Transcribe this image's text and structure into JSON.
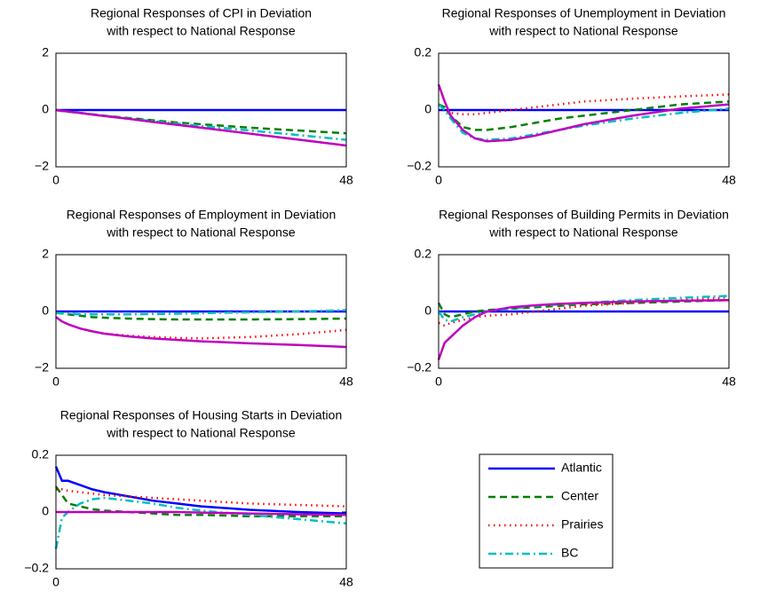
{
  "chart_data": [
    {
      "type": "line",
      "title": "Regional Responses of CPI in Deviation",
      "subtitle": "with respect to National Response",
      "x": [
        0,
        1,
        2,
        4,
        6,
        8,
        12,
        16,
        20,
        24,
        32,
        40,
        48
      ],
      "xlim": [
        0,
        48
      ],
      "xticks": [
        0,
        48
      ],
      "ylim": [
        -2,
        2
      ],
      "yticks": [
        {
          "value": -2,
          "label": "−2"
        },
        0,
        2
      ],
      "series": [
        {
          "name": "Atlantic",
          "color": "#0000ff",
          "dash": "solid",
          "values": [
            0,
            0,
            0,
            0,
            0,
            0,
            0,
            0,
            0,
            0,
            0,
            0,
            0
          ]
        },
        {
          "name": "Center",
          "color": "#008000",
          "dash": "dashed",
          "values": [
            0,
            -0.03,
            -0.06,
            -0.1,
            -0.15,
            -0.2,
            -0.28,
            -0.36,
            -0.44,
            -0.5,
            -0.62,
            -0.72,
            -0.82
          ]
        },
        {
          "name": "Prairies",
          "color": "#ff0000",
          "dash": "dotted",
          "values": [
            0,
            -0.03,
            -0.05,
            -0.1,
            -0.16,
            -0.21,
            -0.31,
            -0.42,
            -0.52,
            -0.62,
            -0.83,
            -1.04,
            -1.25
          ]
        },
        {
          "name": "BC",
          "color": "#00bfbf",
          "dash": "dashdot",
          "values": [
            0,
            -0.03,
            -0.05,
            -0.1,
            -0.15,
            -0.2,
            -0.3,
            -0.39,
            -0.48,
            -0.56,
            -0.72,
            -0.88,
            -1.05
          ]
        },
        {
          "color": "#bf00bf",
          "dash": "solid",
          "values": [
            0,
            -0.03,
            -0.05,
            -0.1,
            -0.16,
            -0.21,
            -0.31,
            -0.42,
            -0.52,
            -0.62,
            -0.83,
            -1.04,
            -1.25
          ]
        }
      ]
    },
    {
      "type": "line",
      "title": "Regional Responses of Unemployment in Deviation",
      "subtitle": "with respect to National Response",
      "x": [
        0,
        1,
        2,
        4,
        6,
        8,
        12,
        16,
        20,
        24,
        32,
        40,
        48
      ],
      "xlim": [
        0,
        48
      ],
      "xticks": [
        0,
        48
      ],
      "ylim": [
        -0.2,
        0.2
      ],
      "yticks": [
        {
          "value": -0.2,
          "label": "−0.2"
        },
        0,
        0.2
      ],
      "series": [
        {
          "name": "Atlantic",
          "color": "#0000ff",
          "dash": "solid",
          "values": [
            0,
            0,
            0,
            0,
            0,
            0,
            0,
            0,
            0,
            0,
            0,
            0,
            0
          ]
        },
        {
          "name": "Center",
          "color": "#008000",
          "dash": "dashed",
          "values": [
            0.02,
            0.01,
            -0.02,
            -0.06,
            -0.07,
            -0.07,
            -0.06,
            -0.045,
            -0.03,
            -0.02,
            0,
            0.02,
            0.03
          ]
        },
        {
          "name": "Prairies",
          "color": "#ff0000",
          "dash": "dotted",
          "values": [
            0.02,
            0,
            -0.01,
            -0.015,
            -0.015,
            -0.01,
            0,
            0.01,
            0.02,
            0.03,
            0.04,
            0.048,
            0.055
          ]
        },
        {
          "name": "BC",
          "color": "#00bfbf",
          "dash": "dashdot",
          "values": [
            0.02,
            0,
            -0.03,
            -0.08,
            -0.1,
            -0.105,
            -0.1,
            -0.085,
            -0.07,
            -0.055,
            -0.03,
            -0.01,
            0.005
          ]
        },
        {
          "color": "#bf00bf",
          "dash": "solid",
          "values": [
            0.09,
            0.03,
            -0.02,
            -0.07,
            -0.1,
            -0.11,
            -0.105,
            -0.09,
            -0.07,
            -0.05,
            -0.02,
            0.005,
            0.02
          ]
        }
      ]
    },
    {
      "type": "line",
      "title": "Regional Responses of Employment in Deviation",
      "subtitle": "with respect to National Response",
      "x": [
        0,
        1,
        2,
        4,
        6,
        8,
        12,
        16,
        20,
        24,
        32,
        40,
        48
      ],
      "xlim": [
        0,
        48
      ],
      "xticks": [
        0,
        48
      ],
      "ylim": [
        -2,
        2
      ],
      "yticks": [
        {
          "value": -2,
          "label": "−2"
        },
        0,
        2
      ],
      "series": [
        {
          "name": "Atlantic",
          "color": "#0000ff",
          "dash": "solid",
          "values": [
            0,
            0,
            0,
            0,
            0,
            0,
            0,
            0,
            0,
            0,
            0,
            0,
            0
          ]
        },
        {
          "name": "Center",
          "color": "#008000",
          "dash": "dashed",
          "values": [
            -0.05,
            -0.07,
            -0.1,
            -0.15,
            -0.2,
            -0.22,
            -0.25,
            -0.27,
            -0.28,
            -0.28,
            -0.28,
            -0.27,
            -0.25
          ]
        },
        {
          "name": "Prairies",
          "color": "#ff0000",
          "dash": "dotted",
          "values": [
            -0.2,
            -0.35,
            -0.45,
            -0.6,
            -0.7,
            -0.78,
            -0.85,
            -0.9,
            -0.93,
            -0.95,
            -0.9,
            -0.8,
            -0.65
          ]
        },
        {
          "name": "BC",
          "color": "#00bfbf",
          "dash": "dashdot",
          "values": [
            -0.05,
            -0.06,
            -0.08,
            -0.1,
            -0.1,
            -0.1,
            -0.1,
            -0.09,
            -0.08,
            -0.06,
            -0.03,
            0,
            0.05
          ]
        },
        {
          "color": "#bf00bf",
          "dash": "solid",
          "values": [
            -0.2,
            -0.35,
            -0.45,
            -0.6,
            -0.7,
            -0.78,
            -0.88,
            -0.95,
            -1.0,
            -1.05,
            -1.12,
            -1.18,
            -1.25
          ]
        }
      ]
    },
    {
      "type": "line",
      "title": "Regional Responses of Building Permits in Deviation",
      "subtitle": "with respect to National Response",
      "x": [
        0,
        1,
        2,
        4,
        6,
        8,
        12,
        16,
        20,
        24,
        32,
        40,
        48
      ],
      "xlim": [
        0,
        48
      ],
      "xticks": [
        0,
        48
      ],
      "ylim": [
        -0.2,
        0.2
      ],
      "yticks": [
        {
          "value": -0.2,
          "label": "−0.2"
        },
        0,
        0.2
      ],
      "series": [
        {
          "name": "Atlantic",
          "color": "#0000ff",
          "dash": "solid",
          "values": [
            0,
            0,
            0,
            0,
            0,
            0,
            0,
            0,
            0,
            0,
            0,
            0,
            0
          ]
        },
        {
          "name": "Center",
          "color": "#008000",
          "dash": "dashed",
          "values": [
            0.03,
            -0.01,
            -0.02,
            -0.01,
            0,
            0.005,
            0.01,
            0.015,
            0.02,
            0.025,
            0.03,
            0.035,
            0.04
          ]
        },
        {
          "name": "Prairies",
          "color": "#ff0000",
          "dash": "dotted",
          "values": [
            -0.04,
            -0.05,
            -0.04,
            -0.03,
            -0.02,
            -0.015,
            -0.01,
            0,
            0.01,
            0.02,
            0.03,
            0.04,
            0.05
          ]
        },
        {
          "name": "BC",
          "color": "#00bfbf",
          "dash": "dashdot",
          "values": [
            0,
            -0.03,
            -0.035,
            -0.02,
            -0.01,
            0,
            0.01,
            0.02,
            0.025,
            0.03,
            0.04,
            0.048,
            0.055
          ]
        },
        {
          "color": "#bf00bf",
          "dash": "solid",
          "values": [
            -0.17,
            -0.11,
            -0.09,
            -0.05,
            -0.02,
            0,
            0.015,
            0.022,
            0.027,
            0.03,
            0.035,
            0.038,
            0.04
          ]
        }
      ]
    },
    {
      "type": "line",
      "title": "Regional Responses of Housing Starts in Deviation",
      "subtitle": "with respect to National Response",
      "x": [
        0,
        1,
        2,
        4,
        6,
        8,
        12,
        16,
        20,
        24,
        32,
        40,
        48
      ],
      "xlim": [
        0,
        48
      ],
      "xticks": [
        0,
        48
      ],
      "ylim": [
        -0.2,
        0.2
      ],
      "yticks": [
        {
          "value": -0.2,
          "label": "−0.2"
        },
        0,
        0.2
      ],
      "series": [
        {
          "name": "Atlantic",
          "color": "#0000ff",
          "dash": "solid",
          "values": [
            0.16,
            0.11,
            0.11,
            0.095,
            0.08,
            0.07,
            0.055,
            0.04,
            0.03,
            0.02,
            0.008,
            0,
            -0.005
          ]
        },
        {
          "name": "Center",
          "color": "#008000",
          "dash": "dashed",
          "values": [
            0.09,
            0.06,
            0.03,
            0.02,
            0.01,
            0.005,
            0,
            -0.005,
            -0.01,
            -0.01,
            -0.015,
            -0.015,
            -0.015
          ]
        },
        {
          "name": "Prairies",
          "color": "#ff0000",
          "dash": "dotted",
          "values": [
            0.08,
            0.08,
            0.075,
            0.07,
            0.065,
            0.06,
            0.055,
            0.05,
            0.045,
            0.04,
            0.03,
            0.025,
            0.02
          ]
        },
        {
          "name": "BC",
          "color": "#00bfbf",
          "dash": "dashdot",
          "values": [
            -0.13,
            -0.02,
            0,
            0.03,
            0.045,
            0.05,
            0.04,
            0.03,
            0.015,
            0.005,
            -0.01,
            -0.025,
            -0.04
          ]
        },
        {
          "color": "#bf00bf",
          "dash": "solid",
          "values": [
            0,
            0,
            0,
            0,
            0,
            0,
            0,
            0,
            0,
            -0.002,
            -0.005,
            -0.008,
            -0.01
          ]
        }
      ]
    }
  ]
}
